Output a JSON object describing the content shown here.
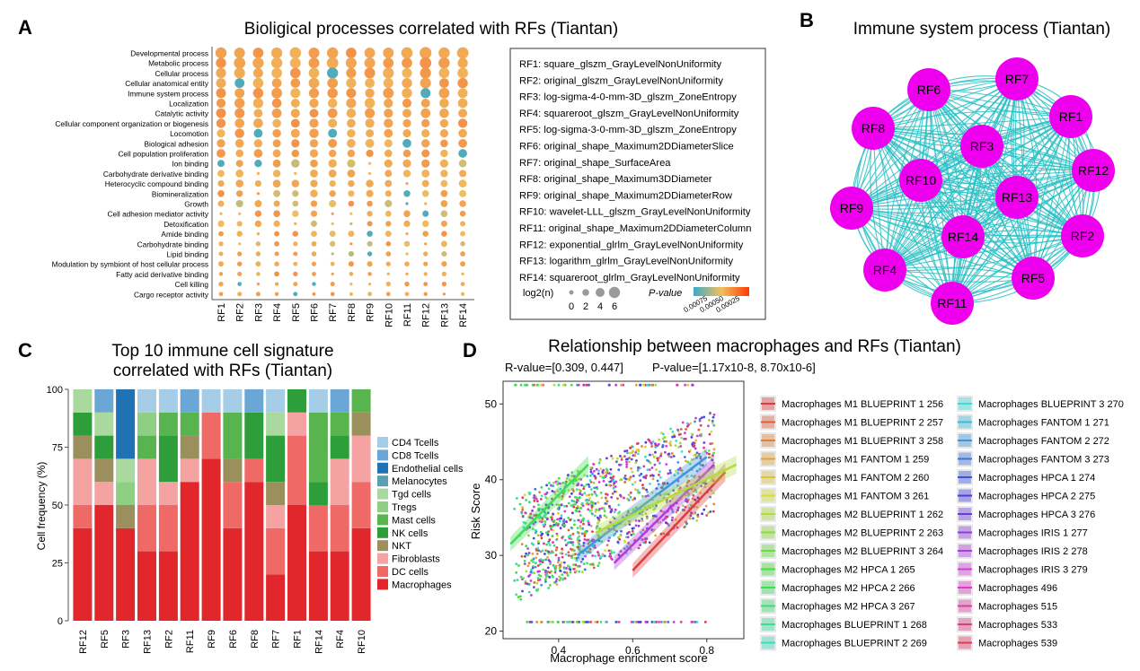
{
  "colors": {
    "network_node": "#ee00ee",
    "network_edge": "#2bc0c4",
    "pvalue_low": "#3ea9c4",
    "pvalue_mid": "#f0c060",
    "pvalue_high": "#ff3a00"
  },
  "chart_data": [
    {
      "panel": "A",
      "type": "scatter",
      "subtype": "dot-matrix",
      "title": "Bioligical processes correlated with RFs (Tiantan)",
      "columns": [
        "RF1",
        "RF2",
        "RF3",
        "RF4",
        "RF5",
        "RF6",
        "RF7",
        "RF8",
        "RF9",
        "RF10",
        "RF11",
        "RF12",
        "RF13",
        "RF14"
      ],
      "rows": [
        "Developmental process",
        "Metabolic process",
        "Cellular process",
        "Cellular anatomical entity",
        "Immune system process",
        "Localization",
        "Catalytic activity",
        "Cellular component organization or biogenesis",
        "Locomotion",
        "Biological adhesion",
        "Cell population proliferation",
        "Ion binding",
        "Carbohydrate derivative binding",
        "Heterocyclic compound binding",
        "Biomineralization",
        "Growth",
        "Cell adhesion mediator activity",
        "Detoxification",
        "Amide binding",
        "Carbohydrate binding",
        "Lipid binding",
        "Modulation by symbiont of host cellular process",
        "Fatty acid derivative binding",
        "Cell killing",
        "Cargo receptor activity"
      ],
      "size_legend": {
        "title": "log2(n)",
        "labels": [
          "0",
          "2",
          "4",
          "6"
        ],
        "values": [
          0,
          2,
          4,
          6
        ]
      },
      "color_legend": {
        "title": "P-value",
        "labels": [
          "0.00075",
          "0.00050",
          "0.00025"
        ],
        "values": [
          0.00075,
          0.0005,
          0.00025
        ]
      },
      "rf_definitions": [
        "RF1: square_glszm_GrayLevelNonUniformity",
        "RF2: original_glszm_GrayLevelNonUniformity",
        "RF3: log-sigma-4-0-mm-3D_glszm_ZoneEntropy",
        "RF4: squareroot_glszm_GrayLevelNonUniformity",
        "RF5: log-sigma-3-0-mm-3D_glszm_ZoneEntropy",
        "RF6: original_shape_Maximum2DDiameterSlice",
        "RF7: original_shape_SurfaceArea",
        "RF8: original_shape_Maximum3DDiameter",
        "RF9: original_shape_Maximum2DDiameterRow",
        "RF10: wavelet-LLL_glszm_GrayLevelNonUniformity",
        "RF11: original_shape_Maximum2DDiameterColumn",
        "RF12: exponential_glrlm_GrayLevelNonUniformity",
        "RF13: logarithm_glrlm_GrayLevelNonUniformity",
        "RF14: squareroot_glrlm_GrayLevelNonUniformity"
      ]
    },
    {
      "panel": "B",
      "type": "network",
      "title": "Immune system process (Tiantan)",
      "nodes": [
        "RF7",
        "RF6",
        "RF1",
        "RF8",
        "RF3",
        "RF12",
        "RF10",
        "RF13",
        "RF9",
        "RF14",
        "RF2",
        "RF4",
        "RF5",
        "RF11"
      ]
    },
    {
      "panel": "C",
      "type": "bar",
      "subtype": "stacked-percent",
      "title": [
        "Top 10 immune cell signature",
        "correlated with RFs (Tiantan)"
      ],
      "ylabel": "Cell frequency (%)",
      "ylim": [
        0,
        100
      ],
      "yticks": [
        0,
        25,
        50,
        75,
        100
      ],
      "categories": [
        "RF12",
        "RF5",
        "RF3",
        "RF13",
        "RF2",
        "RF11",
        "RF9",
        "RF6",
        "RF8",
        "RF7",
        "RF1",
        "RF14",
        "RF4",
        "RF10"
      ],
      "series": [
        {
          "name": "Macrophages",
          "color": "#e2272c",
          "values": [
            40,
            50,
            40,
            30,
            30,
            60,
            70,
            40,
            60,
            20,
            50,
            30,
            30,
            40
          ]
        },
        {
          "name": "DC cells",
          "color": "#ef6a67",
          "values": [
            10,
            0,
            0,
            20,
            20,
            0,
            20,
            20,
            10,
            20,
            30,
            20,
            20,
            20
          ]
        },
        {
          "name": "Fibroblasts",
          "color": "#f5a3a2",
          "values": [
            20,
            10,
            0,
            20,
            10,
            10,
            0,
            0,
            0,
            10,
            10,
            0,
            20,
            20
          ]
        },
        {
          "name": "NKT",
          "color": "#9c8f5e",
          "values": [
            10,
            10,
            10,
            0,
            0,
            10,
            0,
            10,
            0,
            10,
            0,
            0,
            0,
            10
          ]
        },
        {
          "name": "NK cells",
          "color": "#2e9e3a",
          "values": [
            10,
            10,
            0,
            0,
            20,
            0,
            0,
            0,
            20,
            20,
            10,
            10,
            10,
            0
          ]
        },
        {
          "name": "Mast cells",
          "color": "#58b44e",
          "values": [
            0,
            0,
            0,
            10,
            10,
            10,
            0,
            20,
            0,
            0,
            0,
            30,
            10,
            10
          ]
        },
        {
          "name": "Tregs",
          "color": "#8fcf84",
          "values": [
            0,
            0,
            10,
            10,
            0,
            0,
            0,
            0,
            0,
            0,
            0,
            0,
            0,
            0
          ]
        },
        {
          "name": "Tgd cells",
          "color": "#a9d99e",
          "values": [
            10,
            10,
            10,
            0,
            0,
            0,
            0,
            0,
            0,
            10,
            0,
            0,
            0,
            0
          ]
        },
        {
          "name": "Melanocytes",
          "color": "#5a9fb2",
          "values": [
            0,
            0,
            0,
            0,
            0,
            0,
            0,
            0,
            0,
            0,
            0,
            0,
            0,
            0
          ]
        },
        {
          "name": "Endothelial cells",
          "color": "#2171b5",
          "values": [
            0,
            0,
            30,
            0,
            0,
            0,
            0,
            0,
            0,
            0,
            0,
            0,
            0,
            0
          ]
        },
        {
          "name": "CD8 Tcells",
          "color": "#6aa7d6",
          "values": [
            0,
            10,
            0,
            0,
            0,
            10,
            0,
            0,
            10,
            0,
            0,
            0,
            10,
            0
          ]
        },
        {
          "name": "CD4 Tcells",
          "color": "#a6cde8",
          "values": [
            0,
            0,
            0,
            10,
            10,
            0,
            10,
            10,
            0,
            10,
            0,
            10,
            0,
            0
          ]
        }
      ]
    },
    {
      "panel": "D",
      "type": "scatter",
      "title": "Relationship between macrophages and RFs (Tiantan)",
      "subtitle_r": "R-value=[0.309, 0.447]",
      "subtitle_p": "P-value=[1.17x10-8, 8.70x10-6]",
      "xlabel": "Macrophage enrichment score",
      "ylabel": "Risk Score",
      "xlim": [
        0.25,
        0.9
      ],
      "ylim": [
        19,
        53
      ],
      "xticks": [
        0.4,
        0.6,
        0.8
      ],
      "yticks": [
        20,
        30,
        40,
        50
      ],
      "legend": [
        "Macrophages M1 BLUEPRINT 1 256",
        "Macrophages M1 BLUEPRINT 2 257",
        "Macrophages M1 BLUEPRINT 3 258",
        "Macrophages M1 FANTOM 1 259",
        "Macrophages M1 FANTOM 2 260",
        "Macrophages M1 FANTOM 3 261",
        "Macrophages M2 BLUEPRINT 1 262",
        "Macrophages M2 BLUEPRINT 2 263",
        "Macrophages M2 BLUEPRINT 3 264",
        "Macrophages M2 HPCA 1 265",
        "Macrophages M2 HPCA 2 266",
        "Macrophages M2 HPCA 3 267",
        "Macrophages BLUEPRINT 1 268",
        "Macrophages BLUEPRINT 2 269",
        "Macrophages BLUEPRINT 3 270",
        "Macrophages FANTOM 1 271",
        "Macrophages FANTOM 2 272",
        "Macrophages FANTOM 3 273",
        "Macrophages HPCA 1 274",
        "Macrophages HPCA 2 275",
        "Macrophages HPCA 3 276",
        "Macrophages IRIS 1 277",
        "Macrophages IRIS 2 278",
        "Macrophages IRIS 3 279",
        "Macrophages 496",
        "Macrophages 515",
        "Macrophages 533",
        "Macrophages 539"
      ],
      "fit_lines": [
        {
          "x": [
            0.27,
            0.48
          ],
          "y": [
            31.5,
            42.0
          ]
        },
        {
          "x": [
            0.45,
            0.8
          ],
          "y": [
            30.0,
            43.0
          ]
        },
        {
          "x": [
            0.55,
            0.82
          ],
          "y": [
            29.0,
            42.0
          ]
        },
        {
          "x": [
            0.6,
            0.85
          ],
          "y": [
            28.0,
            41.0
          ]
        },
        {
          "x": [
            0.5,
            0.88
          ],
          "y": [
            33.0,
            42.0
          ]
        }
      ]
    }
  ],
  "panels": {
    "a": "A",
    "b": "B",
    "c": "C",
    "d": "D"
  }
}
